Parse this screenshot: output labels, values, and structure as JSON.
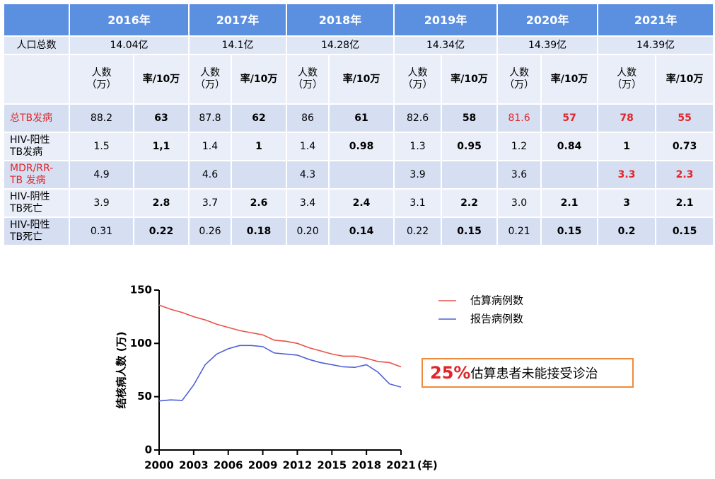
{
  "table": {
    "header": [
      "2016年",
      "2017年",
      "2018年",
      "2019年",
      "2020年",
      "2021年"
    ],
    "population": {
      "label": "人口总数",
      "values": [
        "14.04亿",
        "14.1亿",
        "14.28亿",
        "14.34亿",
        "14.39亿",
        "14.39亿"
      ]
    },
    "sub_header": {
      "count": "人数\n（万）",
      "rate": "率/10万"
    },
    "rows": [
      {
        "label": "总TB发病",
        "cells": [
          [
            "88.2",
            "63"
          ],
          [
            "87.8",
            "62"
          ],
          [
            "86",
            "61"
          ],
          [
            "82.6",
            "58"
          ],
          [
            "81.6",
            "57"
          ],
          [
            "78",
            "55"
          ]
        ]
      },
      {
        "label": "HIV-阳性\nTB发病",
        "cells": [
          [
            "1.5",
            "1,1"
          ],
          [
            "1.4",
            "1"
          ],
          [
            "1.4",
            "0.98"
          ],
          [
            "1.3",
            "0.95"
          ],
          [
            "1.2",
            "0.84"
          ],
          [
            "1",
            "0.73"
          ]
        ]
      },
      {
        "label": "MDR/RR-\nTB 发病",
        "cells": [
          [
            "4.9",
            null
          ],
          [
            "4.6",
            null
          ],
          [
            "4.3",
            null
          ],
          [
            "3.9",
            null
          ],
          [
            "3.6",
            null
          ],
          [
            "3.3",
            "2.3"
          ]
        ]
      },
      {
        "label": "HIV-阴性\nTB死亡",
        "cells": [
          [
            "3.9",
            "2.8"
          ],
          [
            "3.7",
            "2.6"
          ],
          [
            "3.4",
            "2.4"
          ],
          [
            "3.1",
            "2.2"
          ],
          [
            "3.0",
            "2.1"
          ],
          [
            "3",
            "2.1"
          ]
        ]
      },
      {
        "label": "HIV-阳性\nTB死亡",
        "cells": [
          [
            "0.31",
            "0.22"
          ],
          [
            "0.26",
            "0.18"
          ],
          [
            "0.20",
            "0.14"
          ],
          [
            "0.22",
            "0.15"
          ],
          [
            "0.21",
            "0.15"
          ],
          [
            "0.2",
            "0.15"
          ]
        ]
      }
    ]
  },
  "chart_data": {
    "type": "line",
    "y_label": "结核病人数 (万)",
    "x_unit": "(年)",
    "x": [
      2000,
      2001,
      2002,
      2003,
      2004,
      2005,
      2006,
      2007,
      2008,
      2009,
      2010,
      2011,
      2012,
      2013,
      2014,
      2015,
      2016,
      2017,
      2018,
      2019,
      2020,
      2021
    ],
    "series": [
      {
        "name": "估算病例数",
        "color": "#e8524a",
        "values": [
          136,
          132,
          129,
          125,
          122,
          118,
          115,
          112,
          110,
          108,
          103,
          102,
          100,
          96,
          93,
          90,
          88,
          88,
          86,
          83,
          82,
          78
        ]
      },
      {
        "name": "报告病例数",
        "color": "#4f5fd8",
        "values": [
          46,
          47,
          46.5,
          61,
          80,
          90,
          95,
          98,
          98,
          97,
          91,
          90,
          89,
          85,
          82,
          80,
          78,
          77.5,
          80,
          73,
          62,
          59
        ]
      }
    ],
    "xlim": [
      2000,
      2021
    ],
    "xticks": [
      2000,
      2003,
      2006,
      2009,
      2012,
      2015,
      2018,
      2021
    ],
    "ylim": [
      0,
      150
    ],
    "yticks": [
      0,
      50,
      100,
      150
    ],
    "annotation": {
      "highlight": "25%",
      "text": "估算患者未能接受诊治"
    }
  }
}
